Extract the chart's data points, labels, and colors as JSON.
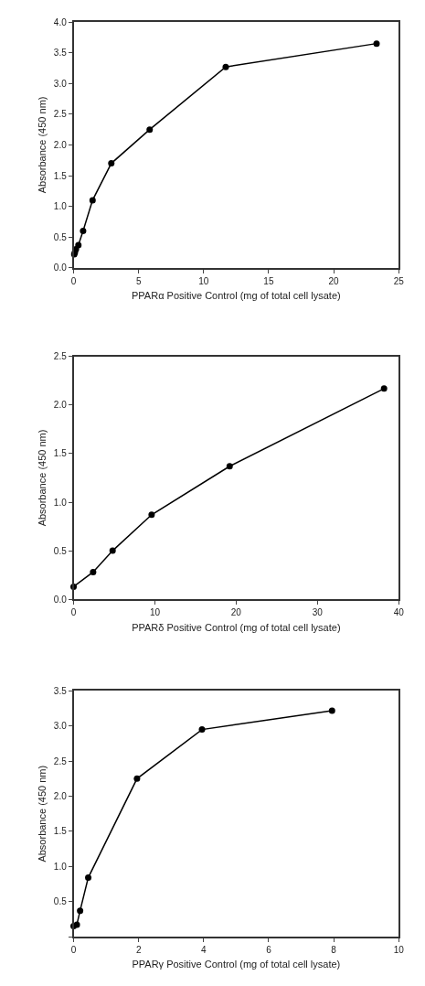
{
  "chart_data": [
    {
      "type": "line",
      "xlabel": "PPARα Positive Control (mg of total cell lysate)",
      "ylabel": "Absorbance (450 nm)",
      "marker": "circle",
      "line_style": "solid",
      "x": [
        0.05,
        0.1,
        0.18,
        0.37,
        0.73,
        1.46,
        2.9,
        5.85,
        11.7,
        23.3
      ],
      "series": [
        {
          "color": "#000000",
          "values": [
            0.22,
            0.25,
            0.3,
            0.37,
            0.6,
            1.1,
            1.7,
            2.25,
            3.27,
            3.65
          ]
        }
      ],
      "xlim": [
        0,
        25
      ],
      "xticks": [
        0,
        5,
        10,
        15,
        20,
        25
      ],
      "ylim": [
        0,
        4
      ],
      "yticks": [
        {
          "value": 0,
          "label": "0.0"
        },
        0.5,
        {
          "value": 1,
          "label": "1.0"
        },
        1.5,
        {
          "value": 2,
          "label": "2.0"
        },
        2.5,
        {
          "value": 3,
          "label": "3.0"
        },
        3.5,
        {
          "value": 4,
          "label": "4.0"
        }
      ]
    },
    {
      "type": "line",
      "xlabel": "PPARδ Positive Control (mg of total cell lysate)",
      "ylabel": "Absorbance (450 nm)",
      "marker": "circle",
      "line_style": "solid",
      "x": [
        0,
        2.4,
        4.8,
        9.6,
        19.2,
        38.2
      ],
      "series": [
        {
          "color": "#000000",
          "values": [
            0.13,
            0.28,
            0.5,
            0.87,
            1.37,
            2.17
          ]
        }
      ],
      "xlim": [
        0,
        40
      ],
      "xticks": [
        0,
        10,
        20,
        30,
        40
      ],
      "ylim": [
        0,
        2.5
      ],
      "yticks": [
        {
          "value": 0,
          "label": "0.0"
        },
        0.5,
        {
          "value": 1,
          "label": "1.0"
        },
        1.5,
        {
          "value": 2,
          "label": "2.0"
        },
        2.5
      ]
    },
    {
      "type": "line",
      "xlabel": "PPARγ Positive Control (mg of total cell lysate)",
      "ylabel": "Absorbance (450 nm)",
      "marker": "circle",
      "line_style": "solid",
      "x": [
        0,
        0.1,
        0.2,
        0.45,
        1.95,
        3.95,
        7.95
      ],
      "series": [
        {
          "color": "#000000",
          "values": [
            0.15,
            0.17,
            0.37,
            0.84,
            2.25,
            2.95,
            3.22
          ]
        }
      ],
      "xlim": [
        0,
        10
      ],
      "xticks": [
        0,
        2,
        4,
        6,
        8,
        10
      ],
      "ylim": [
        0,
        3.5
      ],
      "yticks": [
        {
          "value": 0,
          "label": null
        },
        0.5,
        {
          "value": 1,
          "label": "1.0"
        },
        1.5,
        {
          "value": 2,
          "label": "2.0"
        },
        2.5,
        {
          "value": 3,
          "label": "3.0"
        },
        3.5
      ]
    }
  ]
}
